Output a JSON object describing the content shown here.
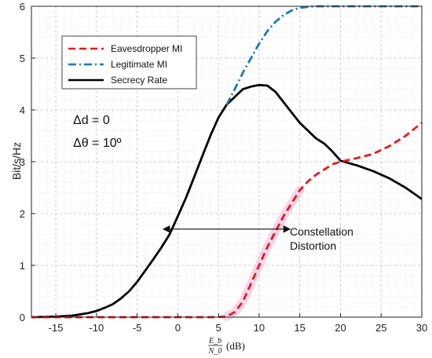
{
  "chart_data": {
    "type": "line",
    "xlabel": {
      "num": "E_b",
      "den": "N_0",
      "unit": "(dB)"
    },
    "ylabel": "Bit/s/Hz",
    "xlim": [
      -18,
      30
    ],
    "ylim": [
      0,
      6
    ],
    "xticks": [
      -15,
      -10,
      -5,
      0,
      5,
      10,
      15,
      20,
      25,
      30
    ],
    "yticks": [
      0,
      1,
      2,
      3,
      4,
      5,
      6
    ],
    "grid": true,
    "legend_position": "top-left",
    "series": [
      {
        "name": "Eavesdropper MI",
        "color": "#e41a1c",
        "style": "dashed",
        "x": [
          -18,
          -12,
          -6,
          0,
          4,
          6,
          7,
          8,
          9,
          10,
          11,
          12,
          13,
          14,
          15,
          16,
          17,
          18,
          19,
          20,
          22,
          24,
          26,
          28,
          30
        ],
        "y": [
          0,
          0,
          0,
          0,
          0,
          0.01,
          0.1,
          0.3,
          0.65,
          1.0,
          1.35,
          1.65,
          1.95,
          2.2,
          2.45,
          2.62,
          2.75,
          2.85,
          2.95,
          3.0,
          3.07,
          3.15,
          3.3,
          3.5,
          3.75
        ]
      },
      {
        "name": "Legitimate MI",
        "color": "#1f77b4",
        "style": "dashdot",
        "x": [
          6,
          7,
          8,
          9,
          10,
          11,
          12,
          13,
          14,
          15,
          16,
          17,
          18,
          20,
          25,
          30
        ],
        "y": [
          4.1,
          4.4,
          4.72,
          5.0,
          5.28,
          5.52,
          5.7,
          5.83,
          5.92,
          5.97,
          5.99,
          6.0,
          6.0,
          6.0,
          6.0,
          6.0
        ]
      },
      {
        "name": "Secrecy Rate",
        "color": "#000000",
        "style": "solid",
        "x": [
          -18,
          -15,
          -13,
          -11,
          -10,
          -9,
          -8,
          -7,
          -6,
          -5,
          -4,
          -3,
          -2,
          -1,
          0,
          1,
          2,
          3,
          4,
          5,
          6,
          7,
          8,
          9,
          10,
          11,
          12,
          13,
          14,
          15,
          16,
          17,
          18,
          19,
          20,
          22,
          24,
          26,
          28,
          30
        ],
        "y": [
          0,
          0.01,
          0.03,
          0.08,
          0.12,
          0.18,
          0.25,
          0.36,
          0.5,
          0.68,
          0.9,
          1.12,
          1.35,
          1.6,
          1.95,
          2.3,
          2.7,
          3.1,
          3.5,
          3.85,
          4.1,
          4.25,
          4.4,
          4.45,
          4.48,
          4.47,
          4.35,
          4.15,
          3.95,
          3.75,
          3.6,
          3.45,
          3.35,
          3.2,
          3.02,
          2.93,
          2.82,
          2.68,
          2.5,
          2.28
        ]
      }
    ],
    "annotations": {
      "params": [
        "Δd = 0",
        "Δθ = 10º"
      ],
      "distortion_label": [
        "Constellation",
        "Distortion"
      ],
      "arrow": {
        "from_x": -1.8,
        "to_x": 13.8,
        "y": 1.7
      }
    }
  }
}
